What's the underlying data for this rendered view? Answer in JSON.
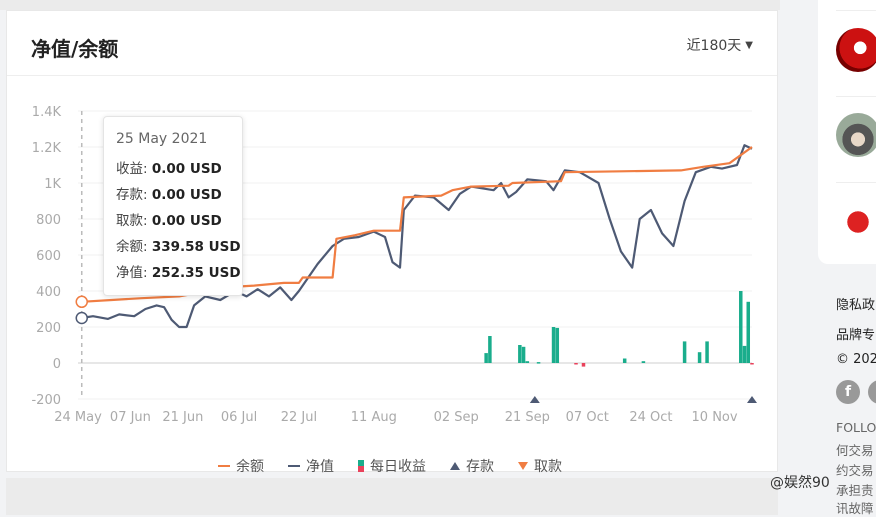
{
  "card": {
    "title": "净值/余额",
    "range_label": "近180天"
  },
  "tooltip": {
    "date": "25 May 2021",
    "rows": [
      {
        "label": "收益: ",
        "value": "0.00 USD"
      },
      {
        "label": "存款: ",
        "value": "0.00 USD"
      },
      {
        "label": "取款: ",
        "value": "0.00 USD"
      },
      {
        "label": "余额: ",
        "value": "339.58 USD"
      },
      {
        "label": "净值: ",
        "value": "252.35 USD"
      }
    ]
  },
  "legend": {
    "balance": "余额",
    "equity": "净值",
    "daily": "每日收益",
    "deposit": "存款",
    "withdraw": "取款"
  },
  "colors": {
    "balance": "#f07d42",
    "equity": "#4e5a74",
    "profit": "#1aad8c",
    "loss": "#e9425c"
  },
  "chart_data": {
    "type": "line",
    "xlabel": "",
    "ylabel": "",
    "ylim": [
      -200,
      1400
    ],
    "y_ticks": [
      -200,
      0,
      200,
      400,
      600,
      800,
      1000,
      1200,
      1400
    ],
    "y_tick_labels": [
      "-200",
      "0",
      "200",
      "400",
      "600",
      "800",
      "1K",
      "1.2K",
      "1.4K"
    ],
    "x_range": [
      "2021-05-24",
      "2021-11-20"
    ],
    "x_ticks": [
      {
        "date": "2021-05-24",
        "label": "24 May"
      },
      {
        "date": "2021-06-07",
        "label": "07 Jun"
      },
      {
        "date": "2021-06-21",
        "label": "21 Jun"
      },
      {
        "date": "2021-07-06",
        "label": "06 Jul"
      },
      {
        "date": "2021-07-22",
        "label": "22 Jul"
      },
      {
        "date": "2021-08-11",
        "label": "11 Aug"
      },
      {
        "date": "2021-09-02",
        "label": "02 Sep"
      },
      {
        "date": "2021-09-21",
        "label": "21 Sep"
      },
      {
        "date": "2021-10-07",
        "label": "07 Oct"
      },
      {
        "date": "2021-10-24",
        "label": "24 Oct"
      },
      {
        "date": "2021-11-10",
        "label": "10 Nov"
      }
    ],
    "grid": true,
    "legend_position": "bottom",
    "series": [
      {
        "name": "余额",
        "points": [
          [
            "2021-05-25",
            340
          ],
          [
            "2021-06-02",
            350
          ],
          [
            "2021-06-10",
            360
          ],
          [
            "2021-06-20",
            370
          ],
          [
            "2021-06-28",
            400
          ],
          [
            "2021-07-02",
            420
          ],
          [
            "2021-07-10",
            430
          ],
          [
            "2021-07-18",
            445
          ],
          [
            "2021-07-22",
            445
          ],
          [
            "2021-07-23",
            475
          ],
          [
            "2021-07-31",
            475
          ],
          [
            "2021-08-01",
            690
          ],
          [
            "2021-08-06",
            710
          ],
          [
            "2021-08-11",
            735
          ],
          [
            "2021-08-18",
            735
          ],
          [
            "2021-08-19",
            920
          ],
          [
            "2021-08-29",
            930
          ],
          [
            "2021-09-01",
            960
          ],
          [
            "2021-09-06",
            980
          ],
          [
            "2021-09-16",
            985
          ],
          [
            "2021-09-17",
            1000
          ],
          [
            "2021-09-30",
            1010
          ],
          [
            "2021-10-01",
            1060
          ],
          [
            "2021-10-16",
            1065
          ],
          [
            "2021-11-01",
            1070
          ],
          [
            "2021-11-07",
            1090
          ],
          [
            "2021-11-14",
            1110
          ],
          [
            "2021-11-20",
            1200
          ]
        ]
      },
      {
        "name": "净值",
        "points": [
          [
            "2021-05-25",
            250
          ],
          [
            "2021-05-28",
            260
          ],
          [
            "2021-06-01",
            245
          ],
          [
            "2021-06-04",
            270
          ],
          [
            "2021-06-08",
            260
          ],
          [
            "2021-06-11",
            300
          ],
          [
            "2021-06-14",
            320
          ],
          [
            "2021-06-16",
            310
          ],
          [
            "2021-06-18",
            240
          ],
          [
            "2021-06-20",
            200
          ],
          [
            "2021-06-22",
            200
          ],
          [
            "2021-06-24",
            320
          ],
          [
            "2021-06-27",
            370
          ],
          [
            "2021-07-01",
            350
          ],
          [
            "2021-07-05",
            400
          ],
          [
            "2021-07-08",
            370
          ],
          [
            "2021-07-11",
            410
          ],
          [
            "2021-07-14",
            370
          ],
          [
            "2021-07-17",
            420
          ],
          [
            "2021-07-20",
            350
          ],
          [
            "2021-07-22",
            400
          ],
          [
            "2021-07-27",
            550
          ],
          [
            "2021-07-31",
            650
          ],
          [
            "2021-08-03",
            690
          ],
          [
            "2021-08-07",
            700
          ],
          [
            "2021-08-11",
            730
          ],
          [
            "2021-08-14",
            700
          ],
          [
            "2021-08-16",
            560
          ],
          [
            "2021-08-18",
            530
          ],
          [
            "2021-08-19",
            850
          ],
          [
            "2021-08-22",
            930
          ],
          [
            "2021-08-27",
            920
          ],
          [
            "2021-08-31",
            850
          ],
          [
            "2021-09-03",
            940
          ],
          [
            "2021-09-06",
            980
          ],
          [
            "2021-09-12",
            960
          ],
          [
            "2021-09-14",
            1000
          ],
          [
            "2021-09-16",
            920
          ],
          [
            "2021-09-18",
            950
          ],
          [
            "2021-09-21",
            1020
          ],
          [
            "2021-09-26",
            1010
          ],
          [
            "2021-09-28",
            960
          ],
          [
            "2021-10-01",
            1070
          ],
          [
            "2021-10-05",
            1060
          ],
          [
            "2021-10-10",
            1000
          ],
          [
            "2021-10-13",
            800
          ],
          [
            "2021-10-16",
            620
          ],
          [
            "2021-10-19",
            530
          ],
          [
            "2021-10-21",
            800
          ],
          [
            "2021-10-24",
            850
          ],
          [
            "2021-10-27",
            720
          ],
          [
            "2021-10-30",
            650
          ],
          [
            "2021-11-02",
            900
          ],
          [
            "2021-11-05",
            1060
          ],
          [
            "2021-11-09",
            1090
          ],
          [
            "2021-11-12",
            1080
          ],
          [
            "2021-11-16",
            1100
          ],
          [
            "2021-11-18",
            1210
          ],
          [
            "2021-11-20",
            1190
          ]
        ]
      }
    ],
    "daily_profit": [
      [
        "2021-09-10",
        55
      ],
      [
        "2021-09-11",
        150
      ],
      [
        "2021-09-19",
        100
      ],
      [
        "2021-09-20",
        90
      ],
      [
        "2021-09-21",
        10
      ],
      [
        "2021-09-24",
        5
      ],
      [
        "2021-09-28",
        200
      ],
      [
        "2021-09-29",
        195
      ],
      [
        "2021-10-04",
        -3
      ],
      [
        "2021-10-06",
        -20
      ],
      [
        "2021-10-17",
        25
      ],
      [
        "2021-10-22",
        10
      ],
      [
        "2021-11-02",
        120
      ],
      [
        "2021-11-06",
        60
      ],
      [
        "2021-11-08",
        120
      ],
      [
        "2021-11-17",
        400
      ],
      [
        "2021-11-18",
        95
      ],
      [
        "2021-11-19",
        340
      ],
      [
        "2021-11-20",
        -5
      ]
    ],
    "deposits": [
      "2021-09-23",
      "2021-11-20"
    ],
    "withdrawals": [],
    "highlight_date": "2021-05-25"
  },
  "sidebar": {
    "footer_links": [
      "隐私政",
      "品牌专"
    ],
    "copyright": "© 202",
    "disclaimer": [
      "FOLLO",
      "何交易",
      "约交易",
      "承担责",
      "讯故障"
    ],
    "watermark": "@娱然90"
  }
}
